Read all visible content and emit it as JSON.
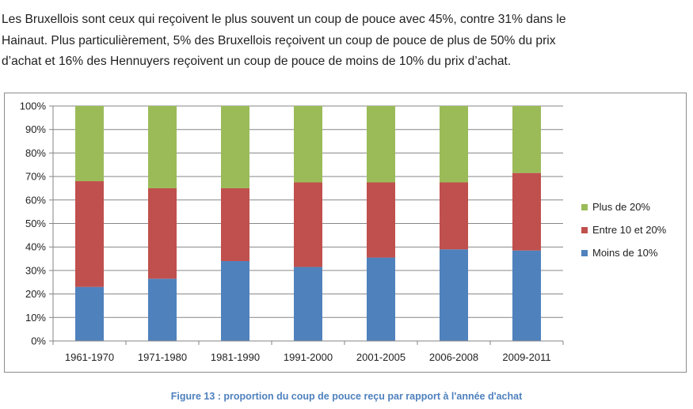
{
  "paragraph": {
    "lines": [
      " Les Bruxellois sont ceux qui reçoivent le plus souvent un coup de pouce avec 45%, contre 31% dans le",
      "Hainaut. Plus particulièrement, 5% des Bruxellois reçoivent un coup de pouce de plus de 50% du prix",
      "d’achat et 16% des Hennuyers reçoivent un coup de pouce de moins de 10% du prix d’achat."
    ]
  },
  "caption": "Figure 13 : proportion du coup de pouce reçu par rapport à l'année d'achat",
  "colors": {
    "moins_de_10": "#4f81bd",
    "entre_10_et_20": "#c0504d",
    "plus_de_20": "#9bbb59",
    "gridline": "#868686",
    "axis": "#868686"
  },
  "chart_data": {
    "type": "bar",
    "stacked": true,
    "percent": true,
    "categories": [
      "1961-1970",
      "1971-1980",
      "1981-1990",
      "1991-2000",
      "2001-2005",
      "2006-2008",
      "2009-2011"
    ],
    "series": [
      {
        "name": "Moins de 10%",
        "values": [
          23,
          26.5,
          34,
          31.5,
          35.5,
          39,
          38.5
        ]
      },
      {
        "name": "Entre 10 et 20%",
        "values": [
          45,
          38.5,
          31,
          36,
          32,
          28.5,
          33
        ]
      },
      {
        "name": "Plus de 20%",
        "values": [
          32,
          35,
          35,
          32.5,
          32.5,
          32.5,
          28.5
        ]
      }
    ],
    "yticks": [
      "0%",
      "10%",
      "20%",
      "30%",
      "40%",
      "50%",
      "60%",
      "70%",
      "80%",
      "90%",
      "100%"
    ],
    "ylim": [
      0,
      100
    ],
    "grid": true,
    "legend_position": "right",
    "legend_order": [
      "Plus de 20%",
      "Entre 10 et 20%",
      "Moins de 10%"
    ],
    "title": "",
    "xlabel": "",
    "ylabel": ""
  }
}
